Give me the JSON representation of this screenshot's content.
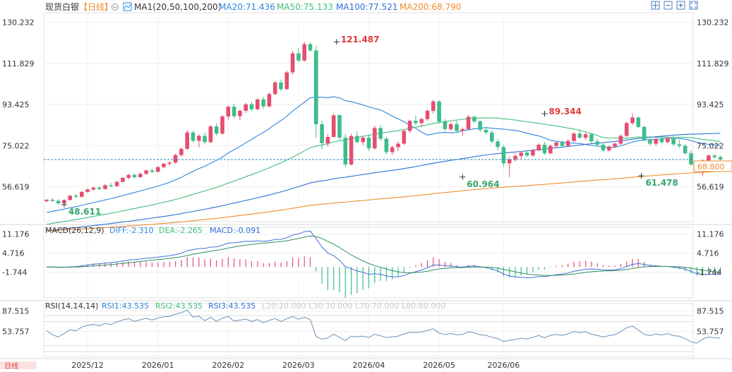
{
  "chart_data": {
    "type": "candlestick",
    "main_panel": {
      "symbol": "现货白银",
      "period": "【日线】",
      "indicator": "MA1(20,50,100,200)",
      "ma_legend": [
        "MA20:71.436",
        "MA50:75.133",
        "MA100:77.521",
        "MA200:68.790"
      ],
      "y_ticks": [
        130.232,
        111.829,
        93.425,
        75.022,
        56.619
      ],
      "y_tick_labels": [
        "130.232",
        "111.829",
        "93.425",
        "75.022",
        "56.619"
      ],
      "ylim": [
        41.0,
        134.5
      ],
      "current_price": 68.8,
      "current_price_label": "68.800",
      "annotations": [
        {
          "x": 49.5,
          "price": 121.487,
          "label": "121.487",
          "kind": "high"
        },
        {
          "x": 85,
          "price": 89.344,
          "label": "89.344",
          "kind": "high"
        },
        {
          "x": 3,
          "price": 48.611,
          "label": "48.611",
          "kind": "low"
        },
        {
          "x": 71,
          "price": 60.964,
          "label": "60.964",
          "kind": "low"
        },
        {
          "x": 101.5,
          "price": 61.478,
          "label": "61.478",
          "kind": "low"
        }
      ],
      "ohlc": [
        [
          50.2,
          51.1,
          49.6,
          50.8
        ],
        [
          50.8,
          51.6,
          50.0,
          50.3
        ],
        [
          50.3,
          50.9,
          48.611,
          49.2
        ],
        [
          49.2,
          51.0,
          48.9,
          50.7
        ],
        [
          50.7,
          53.0,
          50.4,
          52.6
        ],
        [
          52.6,
          53.4,
          51.7,
          52.1
        ],
        [
          52.1,
          54.7,
          51.9,
          54.3
        ],
        [
          54.3,
          55.9,
          53.8,
          55.4
        ],
        [
          55.4,
          56.7,
          54.8,
          56.2
        ],
        [
          56.2,
          57.0,
          55.1,
          55.6
        ],
        [
          55.6,
          57.8,
          55.3,
          57.3
        ],
        [
          57.3,
          58.4,
          56.4,
          56.9
        ],
        [
          56.9,
          59.3,
          56.6,
          58.8
        ],
        [
          58.8,
          61.0,
          58.5,
          60.6
        ],
        [
          60.6,
          62.4,
          59.9,
          61.9
        ],
        [
          61.9,
          62.5,
          60.4,
          60.9
        ],
        [
          60.9,
          63.0,
          60.6,
          62.4
        ],
        [
          62.4,
          64.3,
          62.0,
          63.9
        ],
        [
          63.9,
          64.7,
          62.8,
          63.3
        ],
        [
          63.3,
          65.9,
          63.1,
          65.4
        ],
        [
          65.4,
          67.4,
          64.8,
          66.9
        ],
        [
          66.9,
          68.1,
          65.9,
          67.4
        ],
        [
          67.4,
          71.4,
          67.0,
          70.8
        ],
        [
          70.8,
          74.2,
          70.1,
          73.6
        ],
        [
          73.6,
          81.9,
          73.0,
          80.9
        ],
        [
          80.9,
          81.7,
          76.4,
          77.2
        ],
        [
          77.2,
          80.2,
          74.3,
          79.4
        ],
        [
          79.4,
          80.9,
          75.8,
          76.6
        ],
        [
          76.6,
          84.2,
          76.1,
          83.6
        ],
        [
          83.6,
          84.9,
          79.6,
          80.4
        ],
        [
          80.4,
          88.7,
          79.9,
          88.1
        ],
        [
          88.1,
          93.1,
          86.6,
          92.4
        ],
        [
          92.4,
          93.8,
          87.1,
          88.2
        ],
        [
          88.2,
          91.2,
          86.4,
          90.6
        ],
        [
          90.6,
          94.1,
          89.6,
          93.5
        ],
        [
          93.5,
          94.7,
          90.4,
          91.3
        ],
        [
          91.3,
          96.4,
          90.9,
          95.7
        ],
        [
          95.7,
          96.9,
          91.6,
          92.6
        ],
        [
          92.6,
          98.9,
          92.1,
          98.1
        ],
        [
          98.1,
          103.9,
          97.6,
          103.3
        ],
        [
          103.3,
          104.6,
          99.4,
          100.3
        ],
        [
          100.3,
          108.6,
          99.9,
          107.8
        ],
        [
          107.8,
          117.4,
          106.9,
          116.3
        ],
        [
          116.3,
          118.6,
          112.2,
          113.1
        ],
        [
          113.1,
          121.487,
          112.6,
          120.4
        ],
        [
          120.4,
          121.2,
          116.9,
          117.6
        ],
        [
          117.6,
          119.8,
          78.6,
          84.6
        ],
        [
          84.6,
          86.1,
          73.4,
          76.1
        ],
        [
          76.1,
          80.1,
          74.6,
          78.9
        ],
        [
          78.9,
          89.4,
          78.4,
          88.6
        ],
        [
          88.6,
          89.1,
          77.6,
          78.6
        ],
        [
          78.6,
          80.2,
          65.4,
          66.6
        ],
        [
          66.6,
          80.4,
          66.1,
          79.3
        ],
        [
          79.3,
          81.4,
          75.9,
          76.6
        ],
        [
          76.6,
          79.4,
          75.2,
          78.6
        ],
        [
          78.6,
          80.0,
          72.6,
          73.8
        ],
        [
          73.8,
          83.9,
          73.2,
          82.9
        ],
        [
          82.9,
          84.1,
          77.2,
          78.1
        ],
        [
          78.1,
          78.9,
          71.1,
          72.1
        ],
        [
          72.1,
          75.0,
          70.9,
          74.3
        ],
        [
          74.3,
          76.9,
          72.6,
          75.9
        ],
        [
          75.9,
          82.4,
          75.4,
          81.6
        ],
        [
          81.6,
          86.7,
          80.9,
          86.1
        ],
        [
          86.1,
          88.4,
          84.1,
          85.1
        ],
        [
          85.1,
          87.6,
          83.6,
          86.9
        ],
        [
          86.9,
          91.3,
          86.1,
          90.6
        ],
        [
          90.6,
          95.6,
          89.4,
          94.8
        ],
        [
          94.8,
          95.4,
          84.9,
          85.8
        ],
        [
          85.8,
          86.9,
          81.6,
          82.4
        ],
        [
          82.4,
          85.4,
          81.7,
          84.6
        ],
        [
          84.6,
          86.1,
          80.9,
          81.6
        ],
        [
          81.6,
          83.1,
          79.4,
          82.4
        ],
        [
          82.4,
          88.7,
          82.1,
          87.9
        ],
        [
          87.9,
          88.4,
          85.1,
          85.9
        ],
        [
          85.9,
          86.4,
          81.1,
          82.1
        ],
        [
          82.1,
          83.4,
          80.1,
          80.9
        ],
        [
          80.9,
          81.9,
          76.1,
          76.9
        ],
        [
          76.9,
          78.1,
          72.9,
          74.4
        ],
        [
          74.4,
          75.2,
          65.6,
          67.1
        ],
        [
          67.1,
          70.1,
          60.964,
          68.9
        ],
        [
          68.9,
          71.6,
          67.9,
          70.4
        ],
        [
          70.4,
          72.6,
          69.1,
          71.9
        ],
        [
          71.9,
          72.9,
          69.9,
          70.6
        ],
        [
          70.6,
          73.6,
          70.1,
          72.9
        ],
        [
          72.9,
          76.1,
          72.4,
          75.4
        ],
        [
          75.4,
          76.6,
          70.9,
          71.6
        ],
        [
          71.6,
          75.6,
          71.1,
          74.9
        ],
        [
          74.9,
          77.1,
          73.9,
          76.4
        ],
        [
          76.4,
          77.4,
          74.1,
          74.9
        ],
        [
          74.9,
          77.9,
          74.4,
          77.1
        ],
        [
          77.1,
          81.1,
          76.6,
          80.4
        ],
        [
          80.4,
          82.1,
          77.9,
          78.6
        ],
        [
          78.6,
          80.9,
          77.6,
          80.1
        ],
        [
          80.1,
          80.6,
          76.1,
          76.9
        ],
        [
          76.9,
          78.1,
          74.6,
          75.4
        ],
        [
          75.4,
          76.1,
          72.1,
          72.9
        ],
        [
          72.9,
          75.1,
          72.4,
          74.6
        ],
        [
          74.6,
          76.4,
          73.9,
          75.9
        ],
        [
          75.9,
          80.1,
          75.4,
          79.4
        ],
        [
          79.4,
          85.9,
          78.9,
          85.1
        ],
        [
          85.1,
          89.344,
          84.4,
          87.6
        ],
        [
          87.6,
          88.1,
          82.9,
          83.4
        ],
        [
          83.4,
          84.1,
          76.9,
          77.6
        ],
        [
          77.6,
          78.4,
          74.9,
          75.9
        ],
        [
          75.9,
          78.9,
          75.1,
          77.9
        ],
        [
          77.9,
          79.6,
          75.9,
          76.6
        ],
        [
          76.6,
          79.1,
          75.9,
          78.4
        ],
        [
          78.4,
          79.4,
          74.9,
          75.6
        ],
        [
          75.6,
          77.6,
          74.1,
          74.9
        ],
        [
          74.9,
          75.9,
          70.9,
          71.6
        ],
        [
          71.6,
          72.9,
          65.9,
          66.6
        ],
        [
          66.6,
          67.9,
          63.4,
          64.1
        ],
        [
          64.1,
          68.9,
          61.478,
          68.4
        ],
        [
          68.4,
          71.1,
          67.9,
          70.6
        ],
        [
          70.6,
          71.4,
          69.1,
          69.9
        ],
        [
          69.9,
          70.6,
          68.4,
          68.8
        ]
      ]
    },
    "macd_panel": {
      "label": "MACD(26,12,9)",
      "legend": [
        "DIFF:-2.310",
        "DEA:-2.265",
        "MACD:-0.091"
      ],
      "y_ticks": [
        11.176,
        4.716,
        -1.744
      ],
      "y_tick_labels": [
        "11.176",
        "4.716",
        "-1.744"
      ],
      "ylim": [
        -10.5,
        13.5
      ]
    },
    "rsi_panel": {
      "label": "RSI(14,14,14)",
      "legend": [
        "RSI1:43.535",
        "RSI2:43.535",
        "RSI3:43.535"
      ],
      "levels": [
        "L20:20.000",
        "L30:30.000",
        "L70:70.000",
        "L80:80.000"
      ],
      "y_ticks": [
        87.515,
        53.757
      ],
      "y_tick_labels": [
        "87.515",
        "53.757"
      ],
      "ylim": [
        12.0,
        100.0
      ],
      "level_values": [
        20,
        30,
        70,
        80
      ]
    },
    "x_axis": {
      "labels": [
        "2025/12",
        "2026/01",
        "2026/02",
        "2026/03",
        "2026/04",
        "2026/05",
        "2026/06"
      ],
      "positions": [
        7,
        19,
        31,
        43,
        55,
        67,
        78
      ]
    },
    "ma_periods": [
      20,
      50,
      100,
      200
    ],
    "colors": {
      "up": "#e64d6e",
      "down": "#3dbd8a",
      "ma20": "#2e86de",
      "ma50": "#3cbf7a",
      "ma100": "#2e6fd6",
      "ma200": "#f08c2e",
      "diff": "#3f6fd8",
      "dea": "#2f8f5f",
      "rsi": "#6a90b8",
      "price_line": "#2a8ab5",
      "price_tag": "#f08c2e",
      "legend_blue": "#2e86de",
      "legend_green": "#3cbf7a",
      "legend_orange": "#f08c2e",
      "label_red": "#e03a3a",
      "label_green": "#36a46a"
    },
    "toolbar_icons": [
      "crosshair-icon",
      "minus-zoom-icon",
      "plus-zoom-icon",
      "fullscreen-icon"
    ],
    "ma_toggle_icon": "dropdown-circle-icon",
    "footer_label": "日线"
  }
}
